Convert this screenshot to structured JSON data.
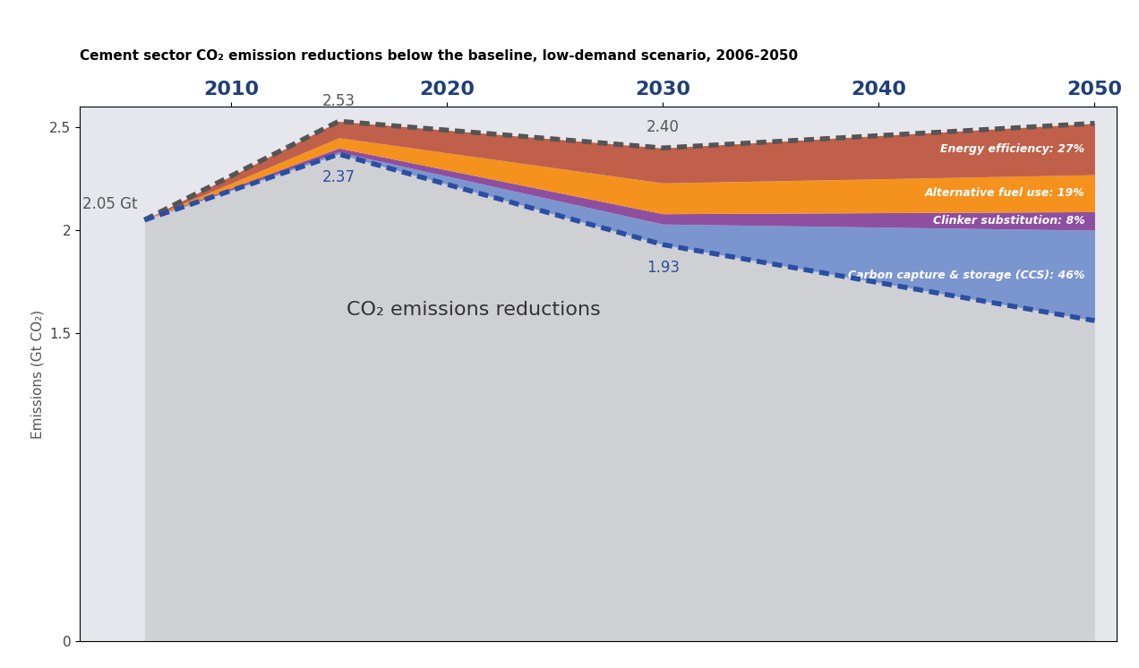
{
  "chart_data": {
    "type": "area",
    "title": "Cement sector CO₂ emission reductions below the baseline, low-demand scenario, 2006-2050",
    "y_label": "Emissions (Gt CO₂)",
    "annotations": [
      "CO₂ emissions reductions"
    ],
    "x": [
      2006,
      2015,
      2030,
      2050
    ],
    "xlim": [
      2003,
      2051
    ],
    "xticks": [
      2010,
      2020,
      2030,
      2040,
      2050
    ],
    "ylim": [
      0,
      2.6
    ],
    "yticks": [
      0,
      1.5,
      2,
      2.5
    ],
    "stacked": true,
    "data_labels": true,
    "series": [
      {
        "type": "line",
        "line_style": "dashed",
        "color": "#555555",
        "values": [
          2.05,
          2.53,
          2.4,
          2.52
        ],
        "value_labels": [
          "2.05 Gt",
          "2.53",
          "2.40",
          null
        ]
      },
      {
        "type": "line",
        "line_style": "dashed",
        "color": "#2b4ea2",
        "values": [
          2.05,
          2.37,
          1.93,
          1.56
        ],
        "value_labels": [
          null,
          "2.37",
          "1.93",
          null
        ]
      },
      {
        "name": "Carbon capture & storage (CCS): 46%",
        "type": "area",
        "color": "#7b96cf",
        "values": [
          0,
          0.01,
          0.1,
          0.44
        ]
      },
      {
        "name": "Clinker substitution: 8%",
        "type": "area",
        "color": "#8e4fa0",
        "values": [
          0,
          0.02,
          0.05,
          0.09
        ]
      },
      {
        "name": "Alternative fuel use: 19%",
        "type": "area",
        "color": "#f5921e",
        "values": [
          0,
          0.05,
          0.15,
          0.18
        ]
      },
      {
        "name": "Energy efficiency: 27%",
        "type": "area",
        "color": "#c0604a",
        "values": [
          0,
          0.08,
          0.17,
          0.25
        ]
      }
    ]
  }
}
